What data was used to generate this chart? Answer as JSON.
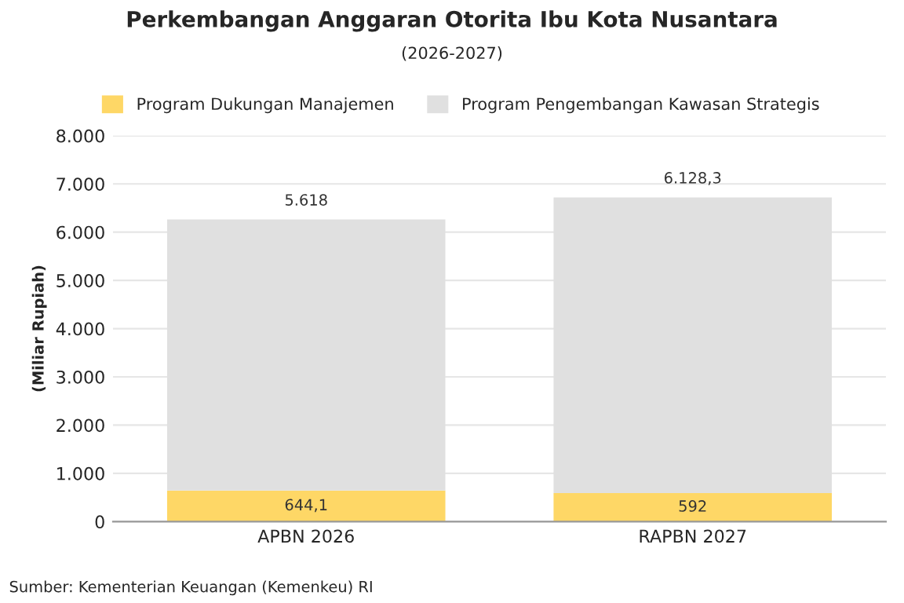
{
  "chart_data": {
    "type": "bar",
    "title": "Perkembangan Anggaran Otorita Ibu Kota Nusantara",
    "subtitle": "(2026-2027)",
    "ylabel": "(Miliar Rupiah)",
    "categories": [
      "APBN 2026",
      "RAPBN 2027"
    ],
    "stacked": true,
    "series": [
      {
        "name": "Program Dukungan Manajemen",
        "color": "#fed766",
        "values": [
          644.1,
          592
        ],
        "value_labels": [
          "644,1",
          "592"
        ]
      },
      {
        "name": "Program Pengembangan Kawasan Strategis",
        "color": "#e0e0e0",
        "values": [
          5618,
          6128.3
        ],
        "value_labels": [
          "5.618",
          "6.128,3"
        ]
      }
    ],
    "ylim": [
      0,
      8000
    ],
    "yticks": [
      0,
      {
        "value": 1000,
        "label": "1.000"
      },
      {
        "value": 2000,
        "label": "2.000"
      },
      {
        "value": 3000,
        "label": "3.000"
      },
      {
        "value": 4000,
        "label": "4.000"
      },
      {
        "value": 5000,
        "label": "5.000"
      },
      {
        "value": 6000,
        "label": "6.000"
      },
      {
        "value": 7000,
        "label": "7.000"
      },
      {
        "value": 8000,
        "label": "8.000"
      }
    ],
    "grid": "y",
    "legend": "top",
    "annotations": [
      "Sumber: Kementerian Keuangan (Kemenkeu) RI"
    ]
  }
}
